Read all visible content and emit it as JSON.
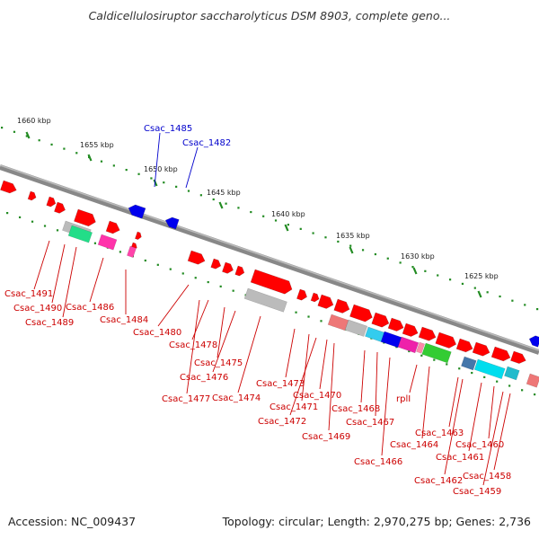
{
  "title": "Caldicellulosiruptor saccharolyticus DSM 8903, complete geno...",
  "footer": {
    "accession": "Accession: NC_009437",
    "stats": "Topology: circular; Length: 2,970,275 bp; Genes: 2,736"
  },
  "colors": {
    "backbone": "#888888",
    "forward_gene": "#ff0000",
    "reverse_gene": "#0000ee",
    "ticks": "#228b22",
    "label_forward": "#cc0000",
    "label_reverse": "#0000cc"
  },
  "scale_labels": [
    "1660 kbp",
    "1655 kbp",
    "1650 kbp",
    "1645 kbp",
    "1640 kbp",
    "1635 kbp",
    "1630 kbp",
    "1625 kbp"
  ],
  "labels_reverse": [
    "Csac_1485",
    "Csac_1482"
  ],
  "labels_forward": [
    "Csac_1491",
    "Csac_1490",
    "Csac_1489",
    "Csac_1486",
    "Csac_1484",
    "Csac_1480",
    "Csac_1478",
    "Csac_1475",
    "Csac_1476",
    "Csac_1477",
    "Csac_1474",
    "Csac_1473",
    "Csac_1471",
    "Csac_1472",
    "Csac_1470",
    "Csac_1469",
    "Csac_1468",
    "Csac_1467",
    "Csac_1466",
    "rplI",
    "Csac_1464",
    "Csac_1463",
    "Csac_1462",
    "Csac_1461",
    "Csac_1460",
    "Csac_1459",
    "Csac_1458"
  ]
}
